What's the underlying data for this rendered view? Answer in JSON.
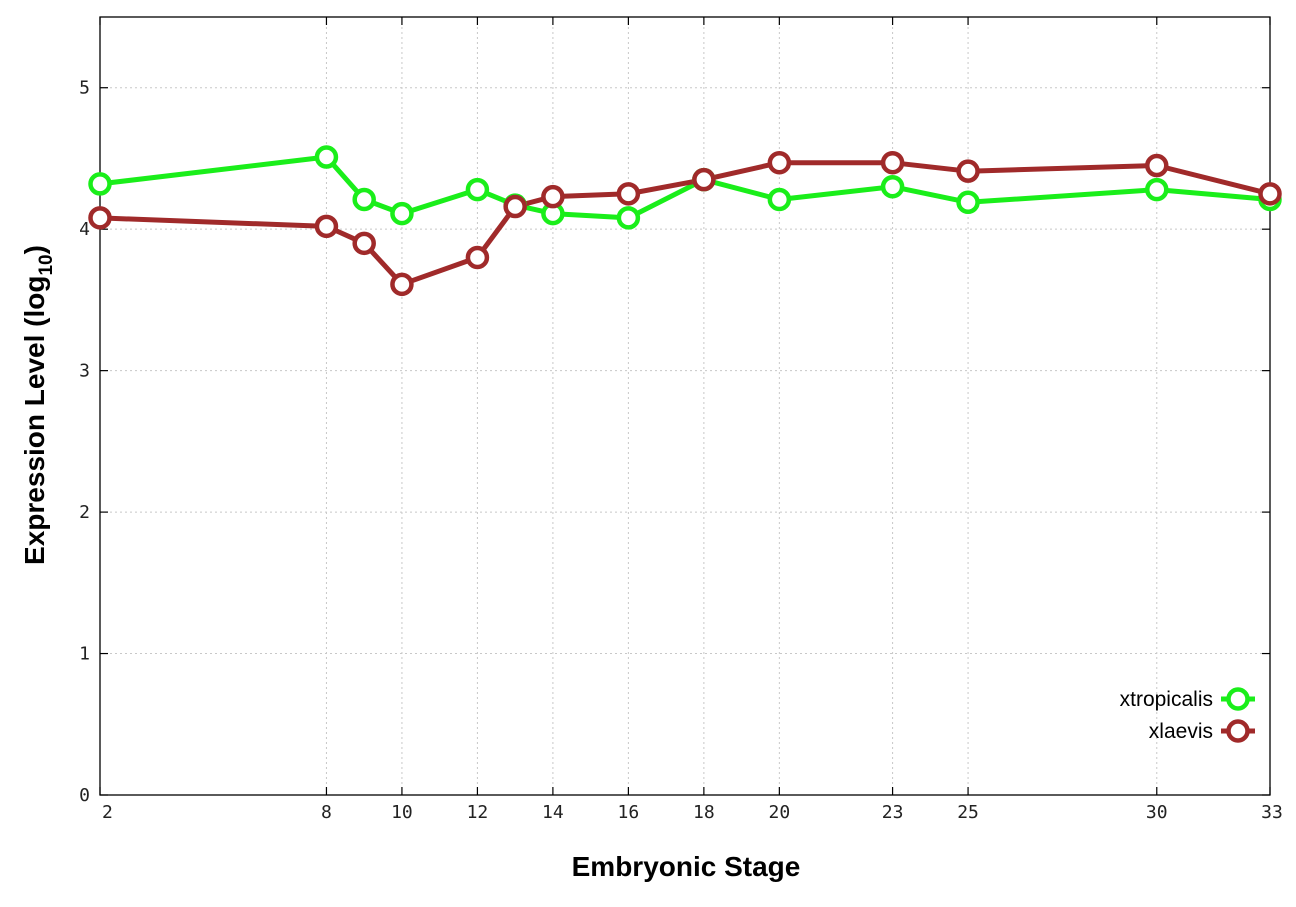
{
  "chart_data": {
    "type": "line",
    "xlabel": "Embryonic Stage",
    "ylabel_main": "Expression Level (log",
    "ylabel_sub": "10",
    "ylabel_close": ")",
    "xlim": [
      2,
      33
    ],
    "ylim": [
      0,
      5.5
    ],
    "x_ticks": [
      2,
      8,
      10,
      12,
      14,
      16,
      18,
      20,
      23,
      25,
      30,
      33
    ],
    "y_ticks": [
      0,
      1,
      2,
      3,
      4,
      5
    ],
    "grid": true,
    "legend_position": "bottom-right",
    "series": [
      {
        "name": "xtropicalis",
        "color": "#1aee1a",
        "points": [
          {
            "x": 2,
            "y": 4.32
          },
          {
            "x": 8,
            "y": 4.51
          },
          {
            "x": 9,
            "y": 4.21
          },
          {
            "x": 10,
            "y": 4.11
          },
          {
            "x": 12,
            "y": 4.28
          },
          {
            "x": 13,
            "y": 4.17
          },
          {
            "x": 14,
            "y": 4.11
          },
          {
            "x": 16,
            "y": 4.08
          },
          {
            "x": 18,
            "y": 4.35
          },
          {
            "x": 20,
            "y": 4.21
          },
          {
            "x": 23,
            "y": 4.3
          },
          {
            "x": 25,
            "y": 4.19
          },
          {
            "x": 30,
            "y": 4.28
          },
          {
            "x": 33,
            "y": 4.21
          }
        ]
      },
      {
        "name": "xlaevis",
        "color": "#a02a2a",
        "points": [
          {
            "x": 2,
            "y": 4.08
          },
          {
            "x": 8,
            "y": 4.02
          },
          {
            "x": 9,
            "y": 3.9
          },
          {
            "x": 10,
            "y": 3.61
          },
          {
            "x": 12,
            "y": 3.8
          },
          {
            "x": 13,
            "y": 4.16
          },
          {
            "x": 14,
            "y": 4.23
          },
          {
            "x": 16,
            "y": 4.25
          },
          {
            "x": 18,
            "y": 4.35
          },
          {
            "x": 20,
            "y": 4.47
          },
          {
            "x": 23,
            "y": 4.47
          },
          {
            "x": 25,
            "y": 4.41
          },
          {
            "x": 30,
            "y": 4.45
          },
          {
            "x": 33,
            "y": 4.25
          }
        ]
      }
    ]
  }
}
